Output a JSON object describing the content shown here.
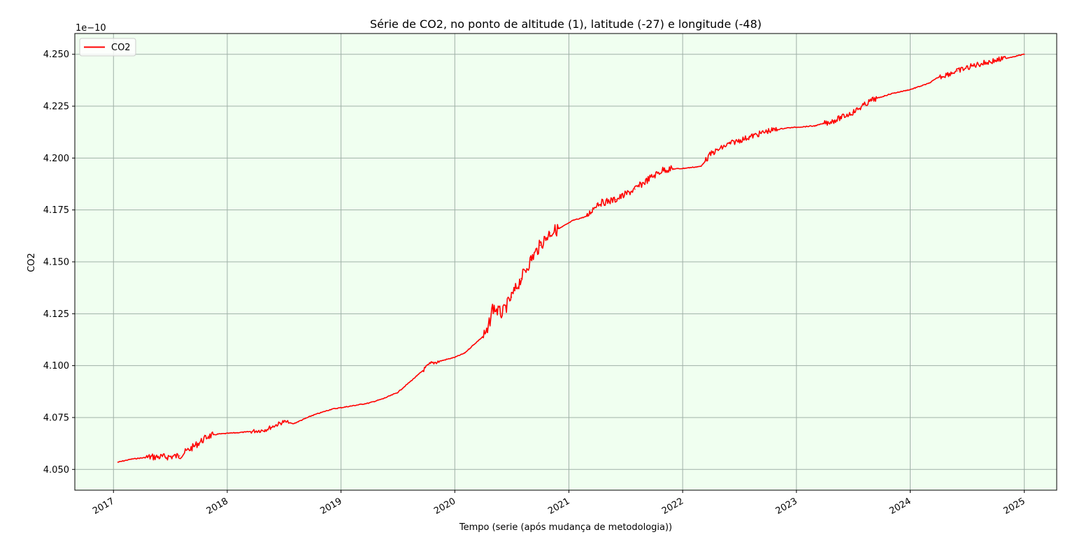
{
  "chart_data": {
    "type": "line",
    "title": "Série de CO2, no ponto de altitude (1), latitude (-27) e longitude (-48)",
    "xlabel": "Tempo (serie (após mudança de metodologia))",
    "ylabel": "CO2",
    "y_offset_label": "1e−10",
    "ylim": [
      4.04,
      4.26
    ],
    "xlim": [
      "2016-08-30",
      "2025-04-15"
    ],
    "y_ticks": [
      4.05,
      4.075,
      4.1,
      4.125,
      4.15,
      4.175,
      4.2,
      4.225,
      4.25
    ],
    "y_tick_labels": [
      "4.050",
      "4.075",
      "4.100",
      "4.125",
      "4.150",
      "4.175",
      "4.200",
      "4.225",
      "4.250"
    ],
    "x_ticks": [
      "2017-01-01",
      "2018-01-01",
      "2019-01-01",
      "2020-01-01",
      "2021-01-01",
      "2022-01-01",
      "2023-01-01",
      "2024-01-01",
      "2025-01-01"
    ],
    "x_tick_labels": [
      "2017",
      "2018",
      "2019",
      "2020",
      "2021",
      "2022",
      "2023",
      "2024",
      "2025"
    ],
    "grid": true,
    "legend_position": "top-left",
    "plot_background": "#f0fff0",
    "grid_color": "#a0b0a8",
    "series": [
      {
        "name": "CO2",
        "color": "#ff0000",
        "x": [
          "2017-01-15",
          "2017-03-01",
          "2017-05-01",
          "2017-06-15",
          "2017-08-01",
          "2017-09-15",
          "2017-11-01",
          "2017-12-01",
          "2018-03-01",
          "2018-05-01",
          "2018-07-01",
          "2018-08-01",
          "2018-10-01",
          "2018-12-01",
          "2019-02-01",
          "2019-04-01",
          "2019-05-15",
          "2019-07-01",
          "2019-09-01",
          "2019-10-15",
          "2020-01-01",
          "2020-02-01",
          "2020-03-01",
          "2020-04-15",
          "2020-05-01",
          "2020-06-01",
          "2020-07-01",
          "2020-08-01",
          "2020-09-01",
          "2020-10-01",
          "2020-11-01",
          "2020-12-01",
          "2021-01-15",
          "2021-03-01",
          "2021-04-01",
          "2021-06-01",
          "2021-08-01",
          "2021-09-15",
          "2021-11-01",
          "2022-01-01",
          "2022-03-01",
          "2022-04-01",
          "2022-06-01",
          "2022-08-01",
          "2022-10-01",
          "2022-12-01",
          "2023-03-01",
          "2023-05-01",
          "2023-07-01",
          "2023-09-01",
          "2023-11-01",
          "2024-01-01",
          "2024-03-01",
          "2024-04-01",
          "2024-06-01",
          "2024-08-01",
          "2024-10-01",
          "2025-01-01"
        ],
        "values": [
          4.0535,
          4.055,
          4.056,
          4.056,
          4.0565,
          4.061,
          4.066,
          4.067,
          4.068,
          4.069,
          4.073,
          4.072,
          4.076,
          4.079,
          4.0805,
          4.082,
          4.084,
          4.087,
          4.095,
          4.101,
          4.104,
          4.106,
          4.11,
          4.116,
          4.128,
          4.125,
          4.133,
          4.142,
          4.151,
          4.158,
          4.164,
          4.166,
          4.17,
          4.172,
          4.178,
          4.18,
          4.185,
          4.19,
          4.1945,
          4.195,
          4.196,
          4.202,
          4.207,
          4.21,
          4.213,
          4.2145,
          4.2155,
          4.218,
          4.222,
          4.228,
          4.231,
          4.233,
          4.236,
          4.239,
          4.242,
          4.245,
          4.247,
          4.25
        ]
      }
    ]
  }
}
